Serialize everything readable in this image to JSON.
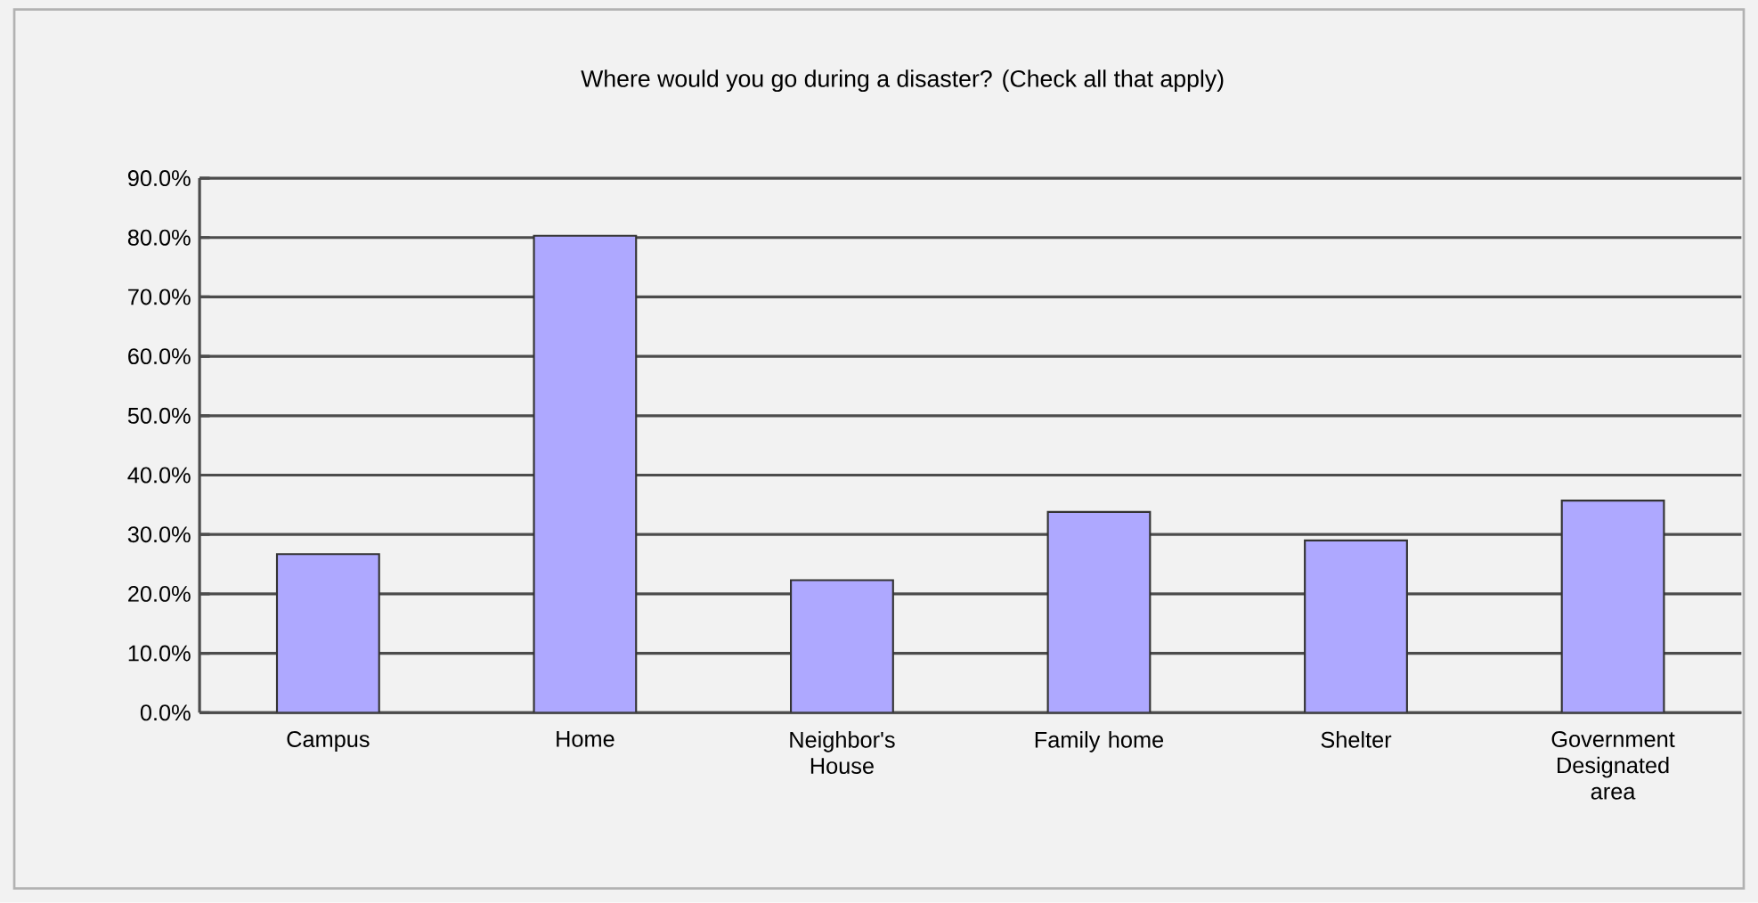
{
  "chart_data": {
    "type": "bar",
    "title": "Where would you go during a disaster? (Check all that apply)",
    "categories": [
      "Campus",
      "Home",
      "Neighbor's House",
      "Family home",
      "Shelter",
      "Government Designated area"
    ],
    "values": [
      26.7,
      80.3,
      22.3,
      33.8,
      29.0,
      35.7
    ],
    "color": "#aea8ff",
    "ylim": [
      0,
      90
    ],
    "yticks": [
      {
        "value": 0,
        "label": "0.0%"
      },
      {
        "value": 10,
        "label": "10.0%"
      },
      {
        "value": 20,
        "label": "20.0%"
      },
      {
        "value": 30,
        "label": "30.0%"
      },
      {
        "value": 40,
        "label": "40.0%"
      },
      {
        "value": 50,
        "label": "50.0%"
      },
      {
        "value": 60,
        "label": "60.0%"
      },
      {
        "value": 70,
        "label": "70.0%"
      },
      {
        "value": 80,
        "label": "80.0%"
      },
      {
        "value": 90,
        "label": "90.0%"
      }
    ],
    "grid": "y"
  }
}
